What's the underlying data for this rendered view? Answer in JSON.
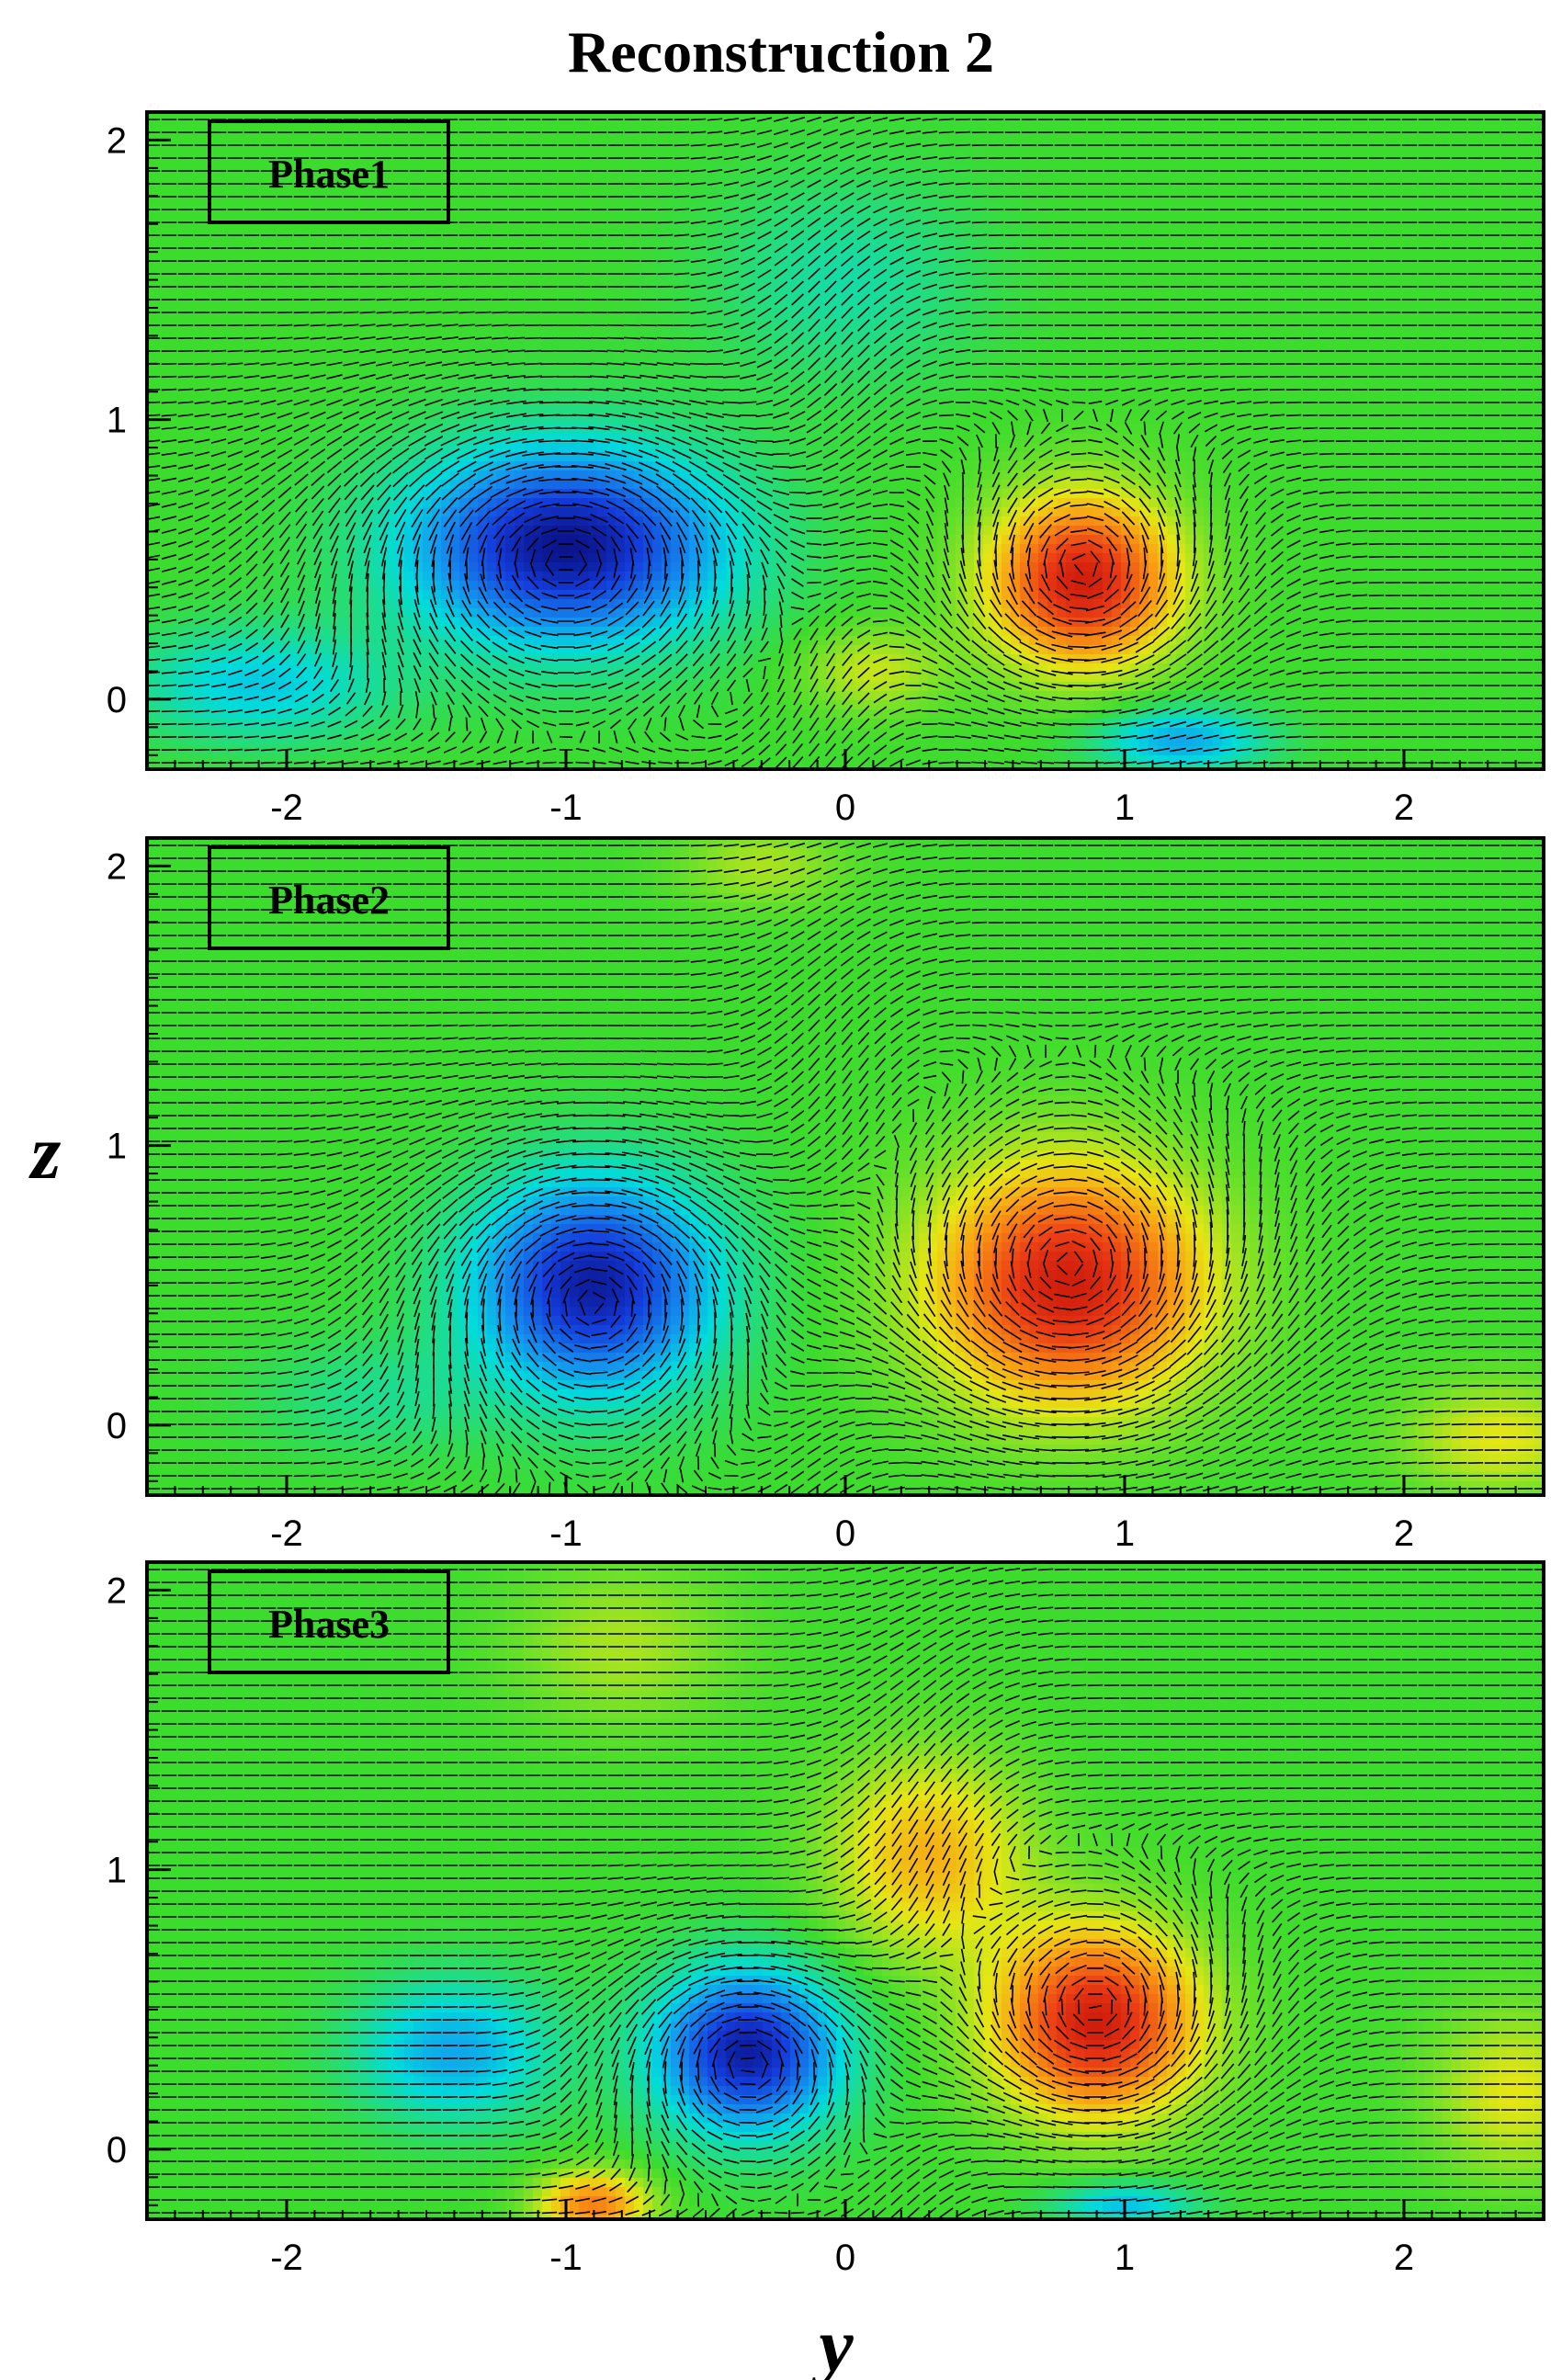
{
  "figure": {
    "title": "Reconstruction 2",
    "xlabel": "y",
    "ylabel": "z"
  },
  "colors": {
    "background_field": "#3ddc2c",
    "positive_core": "#e8321e",
    "negative_core": "#1230d0",
    "frame": "#000000",
    "vectors": "#000000"
  },
  "chart_data": [
    {
      "type": "vector-contour",
      "panel_label": "Phase1",
      "xlim": [
        -2.5,
        2.5
      ],
      "ylim": [
        -0.25,
        2.1
      ],
      "xticks": [
        -2,
        -1,
        0,
        1,
        2
      ],
      "yticks": [
        0,
        1,
        2
      ],
      "vortices": [
        {
          "y": -1.0,
          "z": 0.55,
          "sign": -1,
          "strength": 1.0,
          "ry": 0.55,
          "rz": 0.34
        },
        {
          "y": 0.85,
          "z": 0.42,
          "sign": 1,
          "strength": 0.95,
          "ry": 0.33,
          "rz": 0.3
        }
      ],
      "weak_regions": [
        {
          "y": -2.1,
          "z": 0.05,
          "value": -0.35,
          "ry": 0.45,
          "rz": 0.2
        },
        {
          "y": 1.2,
          "z": -0.15,
          "value": -0.45,
          "ry": 0.3,
          "rz": 0.12
        },
        {
          "y": 0.0,
          "z": 1.5,
          "value": -0.2,
          "ry": 0.45,
          "rz": 0.35
        },
        {
          "y": 0.1,
          "z": 0.1,
          "value": 0.25,
          "ry": 0.25,
          "rz": 0.15
        }
      ]
    },
    {
      "type": "vector-contour",
      "panel_label": "Phase2",
      "xlim": [
        -2.5,
        2.5
      ],
      "ylim": [
        -0.25,
        2.1
      ],
      "xticks": [
        -2,
        -1,
        0,
        1,
        2
      ],
      "yticks": [
        0,
        1,
        2
      ],
      "vortices": [
        {
          "y": -0.9,
          "z": 0.5,
          "sign": -1,
          "strength": 0.95,
          "ry": 0.42,
          "rz": 0.37
        },
        {
          "y": 0.8,
          "z": 0.5,
          "sign": 1,
          "strength": 0.95,
          "ry": 0.48,
          "rz": 0.42
        }
      ],
      "weak_regions": [
        {
          "y": 2.35,
          "z": -0.05,
          "value": 0.3,
          "ry": 0.35,
          "rz": 0.2
        },
        {
          "y": -0.3,
          "z": 2.0,
          "value": 0.2,
          "ry": 0.3,
          "rz": 0.15
        },
        {
          "y": -1.7,
          "z": 0.1,
          "value": -0.15,
          "ry": 0.4,
          "rz": 0.2
        }
      ]
    },
    {
      "type": "vector-contour",
      "panel_label": "Phase3",
      "xlim": [
        -2.5,
        2.5
      ],
      "ylim": [
        -0.25,
        2.1
      ],
      "xticks": [
        -2,
        -1,
        0,
        1,
        2
      ],
      "yticks": [
        0,
        1,
        2
      ],
      "vortices": [
        {
          "y": -0.35,
          "z": 0.35,
          "sign": -1,
          "strength": 0.95,
          "ry": 0.32,
          "rz": 0.28
        },
        {
          "y": 0.9,
          "z": 0.45,
          "sign": 1,
          "strength": 0.95,
          "ry": 0.36,
          "rz": 0.33
        }
      ],
      "weak_regions": [
        {
          "y": -1.4,
          "z": 0.35,
          "value": -0.45,
          "ry": 0.35,
          "rz": 0.25
        },
        {
          "y": 0.3,
          "z": 1.05,
          "value": 0.45,
          "ry": 0.35,
          "rz": 0.35
        },
        {
          "y": -0.9,
          "z": -0.2,
          "value": 0.6,
          "ry": 0.2,
          "rz": 0.12
        },
        {
          "y": 1.0,
          "z": -0.2,
          "value": -0.4,
          "ry": 0.25,
          "rz": 0.08
        },
        {
          "y": 2.4,
          "z": 0.2,
          "value": 0.3,
          "ry": 0.3,
          "rz": 0.3
        },
        {
          "y": -0.8,
          "z": 1.8,
          "value": 0.2,
          "ry": 0.4,
          "rz": 0.3
        }
      ]
    }
  ]
}
